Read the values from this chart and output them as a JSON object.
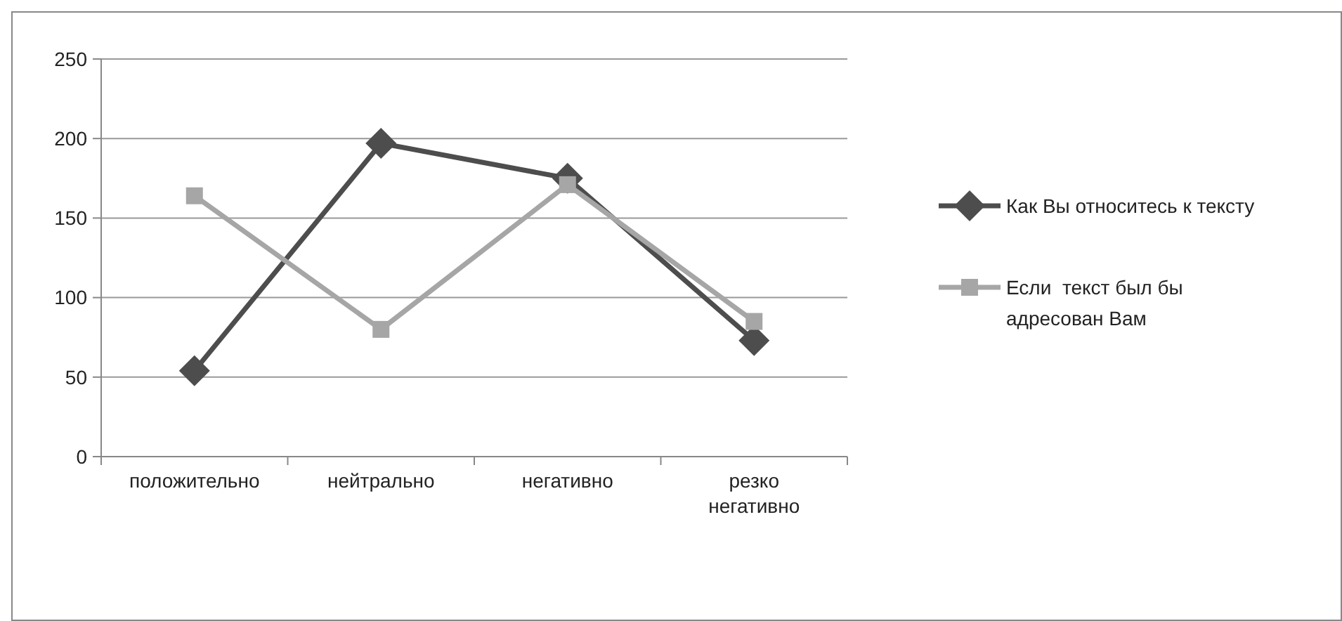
{
  "chart_data": {
    "type": "line",
    "categories": [
      "положительно",
      "нейтрально",
      "негативно",
      "резко негативно"
    ],
    "series": [
      {
        "name": "Как Вы относитесь к тексту",
        "color": "#4d4d4d",
        "marker": "diamond",
        "values": [
          54,
          197,
          175,
          73
        ]
      },
      {
        "name": "Если  текст был бы адресован Вам",
        "color": "#a6a6a6",
        "marker": "square",
        "values": [
          164,
          80,
          171,
          85
        ]
      }
    ],
    "ylim": [
      0,
      250
    ],
    "yticks": [
      0,
      50,
      100,
      150,
      200,
      250
    ],
    "grid": "y",
    "legend": "right",
    "line_style": "solid"
  }
}
